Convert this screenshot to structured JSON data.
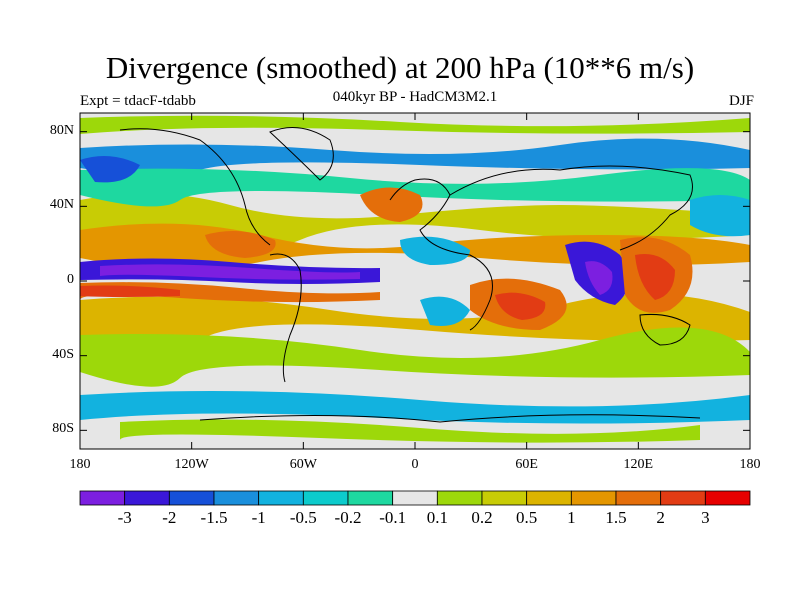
{
  "title": "Divergence (smoothed) at 200 hPa (10**6 m/s)",
  "subtitle": "040kyr BP - HadCM3M2.1",
  "experiment": "Expt = tdacF-tdabb",
  "season": "DJF",
  "map": {
    "lon_range": [
      -180,
      180
    ],
    "lat_range": [
      -90,
      90
    ],
    "lat_ticks": [
      {
        "value": 80,
        "label": "80N"
      },
      {
        "value": 40,
        "label": "40N"
      },
      {
        "value": 0,
        "label": "0"
      },
      {
        "value": -40,
        "label": "40S"
      },
      {
        "value": -80,
        "label": "80S"
      }
    ],
    "lon_ticks": [
      {
        "value": -180,
        "label": "180"
      },
      {
        "value": -120,
        "label": "120W"
      },
      {
        "value": -60,
        "label": "60W"
      },
      {
        "value": 0,
        "label": "0"
      },
      {
        "value": 60,
        "label": "60E"
      },
      {
        "value": 120,
        "label": "120E"
      },
      {
        "value": 180,
        "label": "180"
      }
    ],
    "features": [
      {
        "name": "equatorial-pacific-convergence-band",
        "lon": [
          -180,
          -40
        ],
        "lat": [
          -3,
          6
        ],
        "level": -3
      },
      {
        "name": "indo-pacific-convergence",
        "lon": [
          95,
          125
        ],
        "lat": [
          -10,
          15
        ],
        "level": -3
      },
      {
        "name": "western-pacific-divergence",
        "lon": [
          125,
          150
        ],
        "lat": [
          -15,
          10
        ],
        "level": 2
      },
      {
        "name": "southern-africa-divergence",
        "lon": [
          15,
          60
        ],
        "lat": [
          -20,
          -5
        ],
        "level": 1.5
      },
      {
        "name": "eastern-pacific-divergence",
        "lon": [
          -180,
          -140
        ],
        "lat": [
          -10,
          -3
        ],
        "level": 1.5
      },
      {
        "name": "north-pacific-convergence",
        "lon": [
          -180,
          -100
        ],
        "lat": [
          30,
          45
        ],
        "level": -0.5
      },
      {
        "name": "north-atlantic-divergence",
        "lon": [
          -40,
          0
        ],
        "lat": [
          30,
          45
        ],
        "level": 1
      },
      {
        "name": "tropical-atlantic-divergence",
        "lon": [
          -100,
          -50
        ],
        "lat": [
          8,
          20
        ],
        "level": 1
      }
    ]
  },
  "colorbar": {
    "colors": [
      "#7c1fe0",
      "#3a17d8",
      "#1650d8",
      "#1a8fdc",
      "#12b2df",
      "#0ccbcc",
      "#1ed8a0",
      "#e6e6e6",
      "#9dd80a",
      "#c8cc05",
      "#dcb400",
      "#e49600",
      "#e46e0a",
      "#e23c14",
      "#e60000"
    ],
    "labels": [
      "-3",
      "-2",
      "-1.5",
      "-1",
      "-0.5",
      "-0.2",
      "-0.1",
      "0.1",
      "0.2",
      "0.5",
      "1",
      "1.5",
      "2",
      "3"
    ]
  }
}
